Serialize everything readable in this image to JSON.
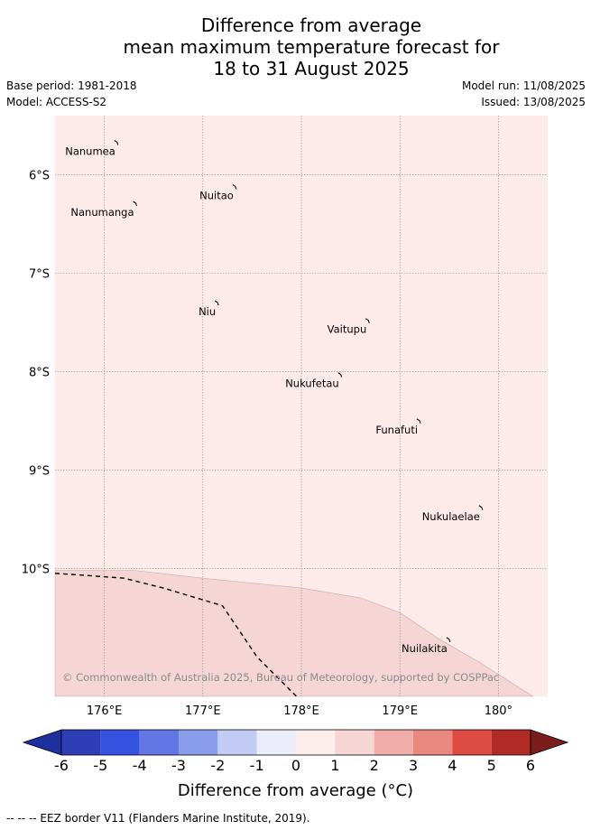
{
  "title": {
    "line1": "Difference from average",
    "line2": "mean maximum temperature forecast for",
    "line3": "18 to 31 August 2025"
  },
  "meta": {
    "base_period": "Base period: 1981-2018",
    "model": "Model: ACCESS-S2",
    "model_run": "Model run: 11/08/2025",
    "issued": "Issued: 13/08/2025"
  },
  "map": {
    "lon_range": [
      175.5,
      180.5
    ],
    "lat_range": [
      -5.4,
      -11.3
    ],
    "lon_ticks": [
      {
        "value": 176,
        "label": "176°E"
      },
      {
        "value": 177,
        "label": "177°E"
      },
      {
        "value": 178,
        "label": "178°E"
      },
      {
        "value": 179,
        "label": "179°E"
      },
      {
        "value": 180,
        "label": "180°"
      }
    ],
    "lat_ticks": [
      {
        "value": -6,
        "label": "6°S"
      },
      {
        "value": -7,
        "label": "7°S"
      },
      {
        "value": -8,
        "label": "8°S"
      },
      {
        "value": -9,
        "label": "9°S"
      },
      {
        "value": -10,
        "label": "10°S"
      }
    ],
    "regions": [
      {
        "class": "0 to 1",
        "color": "#fcebe9"
      },
      {
        "class": "1 to 2",
        "color": "#f5d6d5"
      }
    ],
    "places": [
      {
        "name": "Nanumea",
        "lon": 176.13,
        "lat": -5.67
      },
      {
        "name": "Nuitao",
        "lon": 177.33,
        "lat": -6.12
      },
      {
        "name": "Nanumanga",
        "lon": 176.32,
        "lat": -6.29
      },
      {
        "name": "Niu",
        "lon": 177.15,
        "lat": -7.3
      },
      {
        "name": "Vaitupu",
        "lon": 178.68,
        "lat": -7.48
      },
      {
        "name": "Nukufetau",
        "lon": 178.4,
        "lat": -8.03
      },
      {
        "name": "Funafuti",
        "lon": 179.2,
        "lat": -8.5
      },
      {
        "name": "Nukulaelae",
        "lon": 179.83,
        "lat": -9.38
      },
      {
        "name": "Nuilakita",
        "lon": 179.5,
        "lat": -10.72
      }
    ],
    "copyright": "© Commonwealth of Australia 2025, Bureau of Meteorology, supported by COSPPac"
  },
  "colorbar": {
    "colors": [
      "#1e2f9e",
      "#2f3db7",
      "#3552e0",
      "#6276e6",
      "#8a9ded",
      "#c2cbf4",
      "#ebedfb",
      "#fdeeeb",
      "#f5d6d5",
      "#efaeaa",
      "#e98880",
      "#dd4b43",
      "#b02b26",
      "#7a1d1c"
    ],
    "labels": [
      "-6",
      "-5",
      "-4",
      "-3",
      "-2",
      "-1",
      "0",
      "1",
      "2",
      "3",
      "4",
      "5",
      "6"
    ],
    "title": "Difference from average (°C)"
  },
  "footer": "--  --  -- EEZ border V11 (Flanders Marine Institute, 2019)."
}
